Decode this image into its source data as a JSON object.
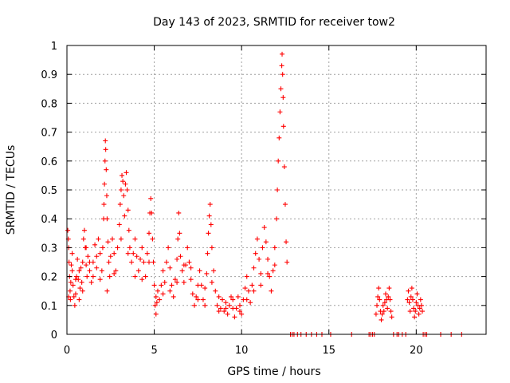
{
  "chart_data": {
    "type": "scatter",
    "title": "Day 143 of 2023, SRMTID for receiver tow2",
    "xlabel": "GPS time / hours",
    "ylabel": "SRMTID / TECUs",
    "xlim": [
      0,
      24
    ],
    "ylim": [
      0,
      1
    ],
    "xticks": [
      0,
      5,
      10,
      15,
      20
    ],
    "xtick_labels": [
      "0",
      "5",
      "10",
      "15",
      "20"
    ],
    "yticks": [
      0,
      0.1,
      0.2,
      0.3,
      0.4,
      0.5,
      0.6,
      0.7,
      0.8,
      0.9,
      1
    ],
    "ytick_labels": [
      "0",
      "0.1",
      "0.2",
      "0.3",
      "0.4",
      "0.5",
      "0.6",
      "0.7",
      "0.8",
      "0.9",
      "1"
    ],
    "grid": true,
    "marker": "+",
    "series": [
      {
        "name": "SRMTID",
        "color": "#ff0000",
        "points": [
          [
            0.05,
            0.36
          ],
          [
            0.08,
            0.33
          ],
          [
            0.1,
            0.3
          ],
          [
            0.12,
            0.25
          ],
          [
            0.15,
            0.2
          ],
          [
            0.18,
            0.15
          ],
          [
            0.2,
            0.12
          ],
          [
            0.22,
            0.18
          ],
          [
            0.25,
            0.24
          ],
          [
            0.3,
            0.22
          ],
          [
            0.35,
            0.17
          ],
          [
            0.4,
            0.13
          ],
          [
            0.45,
            0.1
          ],
          [
            0.5,
            0.14
          ],
          [
            0.55,
            0.2
          ],
          [
            0.6,
            0.26
          ],
          [
            0.65,
            0.19
          ],
          [
            0.7,
            0.12
          ],
          [
            0.75,
            0.16
          ],
          [
            0.8,
            0.23
          ],
          [
            0.85,
            0.18
          ],
          [
            0.9,
            0.25
          ],
          [
            0.95,
            0.33
          ],
          [
            1.0,
            0.36
          ],
          [
            1.05,
            0.3
          ],
          [
            1.1,
            0.24
          ],
          [
            1.15,
            0.2
          ],
          [
            1.2,
            0.27
          ],
          [
            1.3,
            0.22
          ],
          [
            1.4,
            0.18
          ],
          [
            1.5,
            0.25
          ],
          [
            1.6,
            0.31
          ],
          [
            1.7,
            0.27
          ],
          [
            1.8,
            0.33
          ],
          [
            1.9,
            0.28
          ],
          [
            2.0,
            0.22
          ],
          [
            2.05,
            0.3
          ],
          [
            2.1,
            0.4
          ],
          [
            2.12,
            0.45
          ],
          [
            2.15,
            0.52
          ],
          [
            2.18,
            0.6
          ],
          [
            2.2,
            0.67
          ],
          [
            2.22,
            0.64
          ],
          [
            2.25,
            0.57
          ],
          [
            2.28,
            0.48
          ],
          [
            2.3,
            0.4
          ],
          [
            2.35,
            0.32
          ],
          [
            2.4,
            0.25
          ],
          [
            2.45,
            0.2
          ],
          [
            2.5,
            0.27
          ],
          [
            2.6,
            0.33
          ],
          [
            2.7,
            0.28
          ],
          [
            2.8,
            0.22
          ],
          [
            2.9,
            0.3
          ],
          [
            3.0,
            0.38
          ],
          [
            3.05,
            0.45
          ],
          [
            3.1,
            0.5
          ],
          [
            3.15,
            0.55
          ],
          [
            3.2,
            0.53
          ],
          [
            3.25,
            0.48
          ],
          [
            3.3,
            0.41
          ],
          [
            3.35,
            0.52
          ],
          [
            3.4,
            0.56
          ],
          [
            3.45,
            0.5
          ],
          [
            3.5,
            0.43
          ],
          [
            3.55,
            0.36
          ],
          [
            3.6,
            0.3
          ],
          [
            3.7,
            0.25
          ],
          [
            3.8,
            0.28
          ],
          [
            3.9,
            0.33
          ],
          [
            4.0,
            0.27
          ],
          [
            4.1,
            0.22
          ],
          [
            4.2,
            0.26
          ],
          [
            4.3,
            0.3
          ],
          [
            4.4,
            0.25
          ],
          [
            4.5,
            0.2
          ],
          [
            4.6,
            0.28
          ],
          [
            4.7,
            0.35
          ],
          [
            4.75,
            0.42
          ],
          [
            4.8,
            0.47
          ],
          [
            4.85,
            0.42
          ],
          [
            4.9,
            0.33
          ],
          [
            4.95,
            0.25
          ],
          [
            5.0,
            0.17
          ],
          [
            5.05,
            0.1
          ],
          [
            5.1,
            0.07
          ],
          [
            5.15,
            0.11
          ],
          [
            5.2,
            0.15
          ],
          [
            5.3,
            0.12
          ],
          [
            5.4,
            0.17
          ],
          [
            5.5,
            0.22
          ],
          [
            5.6,
            0.18
          ],
          [
            5.7,
            0.25
          ],
          [
            5.8,
            0.3
          ],
          [
            5.9,
            0.23
          ],
          [
            6.0,
            0.17
          ],
          [
            6.1,
            0.13
          ],
          [
            6.2,
            0.19
          ],
          [
            6.3,
            0.26
          ],
          [
            6.35,
            0.33
          ],
          [
            6.4,
            0.42
          ],
          [
            6.45,
            0.35
          ],
          [
            6.5,
            0.27
          ],
          [
            6.6,
            0.22
          ],
          [
            6.7,
            0.18
          ],
          [
            6.8,
            0.24
          ],
          [
            6.9,
            0.3
          ],
          [
            7.0,
            0.25
          ],
          [
            7.1,
            0.19
          ],
          [
            7.2,
            0.14
          ],
          [
            7.3,
            0.1
          ],
          [
            7.4,
            0.13
          ],
          [
            7.5,
            0.17
          ],
          [
            7.6,
            0.22
          ],
          [
            7.7,
            0.17
          ],
          [
            7.8,
            0.12
          ],
          [
            7.9,
            0.16
          ],
          [
            8.0,
            0.21
          ],
          [
            8.05,
            0.28
          ],
          [
            8.1,
            0.35
          ],
          [
            8.15,
            0.41
          ],
          [
            8.2,
            0.45
          ],
          [
            8.25,
            0.38
          ],
          [
            8.3,
            0.3
          ],
          [
            8.4,
            0.22
          ],
          [
            8.5,
            0.15
          ],
          [
            8.6,
            0.1
          ],
          [
            8.7,
            0.13
          ],
          [
            8.8,
            0.09
          ],
          [
            8.9,
            0.12
          ],
          [
            9.0,
            0.08
          ],
          [
            9.1,
            0.11
          ],
          [
            9.2,
            0.07
          ],
          [
            9.3,
            0.1
          ],
          [
            9.4,
            0.13
          ],
          [
            9.5,
            0.09
          ],
          [
            9.6,
            0.06
          ],
          [
            9.7,
            0.09
          ],
          [
            9.8,
            0.13
          ],
          [
            9.9,
            0.1
          ],
          [
            10.0,
            0.07
          ],
          [
            10.1,
            0.12
          ],
          [
            10.2,
            0.16
          ],
          [
            10.3,
            0.2
          ],
          [
            10.4,
            0.15
          ],
          [
            10.5,
            0.11
          ],
          [
            10.6,
            0.17
          ],
          [
            10.7,
            0.23
          ],
          [
            10.8,
            0.28
          ],
          [
            10.9,
            0.33
          ],
          [
            11.0,
            0.26
          ],
          [
            11.1,
            0.21
          ],
          [
            11.2,
            0.3
          ],
          [
            11.3,
            0.37
          ],
          [
            11.4,
            0.32
          ],
          [
            11.5,
            0.26
          ],
          [
            11.6,
            0.2
          ],
          [
            11.7,
            0.15
          ],
          [
            11.8,
            0.22
          ],
          [
            11.9,
            0.3
          ],
          [
            12.0,
            0.4
          ],
          [
            12.05,
            0.5
          ],
          [
            12.1,
            0.6
          ],
          [
            12.15,
            0.68
          ],
          [
            12.2,
            0.77
          ],
          [
            12.25,
            0.85
          ],
          [
            12.3,
            0.93
          ],
          [
            12.32,
            0.97
          ],
          [
            12.35,
            0.9
          ],
          [
            12.38,
            0.82
          ],
          [
            12.4,
            0.72
          ],
          [
            12.45,
            0.58
          ],
          [
            12.5,
            0.45
          ],
          [
            12.55,
            0.32
          ],
          [
            12.6,
            0.25
          ],
          [
            0.1,
            0.13
          ],
          [
            0.3,
            0.28
          ],
          [
            0.5,
            0.19
          ],
          [
            0.7,
            0.22
          ],
          [
            0.9,
            0.15
          ],
          [
            1.1,
            0.3
          ],
          [
            1.3,
            0.25
          ],
          [
            1.5,
            0.2
          ],
          [
            1.7,
            0.23
          ],
          [
            1.9,
            0.19
          ],
          [
            2.3,
            0.15
          ],
          [
            2.7,
            0.21
          ],
          [
            3.1,
            0.33
          ],
          [
            3.5,
            0.28
          ],
          [
            3.9,
            0.2
          ],
          [
            4.3,
            0.19
          ],
          [
            4.7,
            0.25
          ],
          [
            5.1,
            0.13
          ],
          [
            5.5,
            0.14
          ],
          [
            5.9,
            0.15
          ],
          [
            6.3,
            0.18
          ],
          [
            6.7,
            0.24
          ],
          [
            7.1,
            0.23
          ],
          [
            7.5,
            0.12
          ],
          [
            7.9,
            0.1
          ],
          [
            8.3,
            0.18
          ],
          [
            8.7,
            0.08
          ],
          [
            9.1,
            0.09
          ],
          [
            9.5,
            0.12
          ],
          [
            9.9,
            0.08
          ],
          [
            10.3,
            0.12
          ],
          [
            10.7,
            0.15
          ],
          [
            11.1,
            0.17
          ],
          [
            11.5,
            0.21
          ],
          [
            11.9,
            0.24
          ],
          [
            17.7,
            0.07
          ],
          [
            17.75,
            0.1
          ],
          [
            17.8,
            0.13
          ],
          [
            17.85,
            0.16
          ],
          [
            17.9,
            0.12
          ],
          [
            17.95,
            0.08
          ],
          [
            18.0,
            0.05
          ],
          [
            18.05,
            0.07
          ],
          [
            18.1,
            0.1
          ],
          [
            18.15,
            0.08
          ],
          [
            18.2,
            0.11
          ],
          [
            18.25,
            0.14
          ],
          [
            18.3,
            0.12
          ],
          [
            18.35,
            0.09
          ],
          [
            18.4,
            0.13
          ],
          [
            18.45,
            0.16
          ],
          [
            18.5,
            0.12
          ],
          [
            18.55,
            0.08
          ],
          [
            18.6,
            0.06
          ],
          [
            19.5,
            0.12
          ],
          [
            19.55,
            0.15
          ],
          [
            19.6,
            0.11
          ],
          [
            19.65,
            0.08
          ],
          [
            19.7,
            0.13
          ],
          [
            19.75,
            0.16
          ],
          [
            19.8,
            0.12
          ],
          [
            19.85,
            0.09
          ],
          [
            19.9,
            0.06
          ],
          [
            19.95,
            0.08
          ],
          [
            20.0,
            0.11
          ],
          [
            20.05,
            0.14
          ],
          [
            20.1,
            0.1
          ],
          [
            20.15,
            0.07
          ],
          [
            20.2,
            0.09
          ],
          [
            20.25,
            0.12
          ],
          [
            20.3,
            0.1
          ],
          [
            20.35,
            0.08
          ],
          [
            12.8,
            0
          ],
          [
            12.9,
            0
          ],
          [
            13.0,
            0
          ],
          [
            13.2,
            0
          ],
          [
            13.4,
            0
          ],
          [
            13.7,
            0
          ],
          [
            14.0,
            0
          ],
          [
            14.3,
            0
          ],
          [
            14.6,
            0
          ],
          [
            15.1,
            0
          ],
          [
            16.3,
            0
          ],
          [
            17.3,
            0
          ],
          [
            17.4,
            0
          ],
          [
            17.5,
            0
          ],
          [
            17.6,
            0
          ],
          [
            18.7,
            0
          ],
          [
            18.9,
            0
          ],
          [
            19.0,
            0
          ],
          [
            19.2,
            0
          ],
          [
            19.4,
            0
          ],
          [
            20.4,
            0
          ],
          [
            20.5,
            0
          ],
          [
            20.6,
            0
          ],
          [
            21.4,
            0
          ],
          [
            22.0,
            0
          ],
          [
            22.6,
            0
          ]
        ]
      }
    ]
  }
}
